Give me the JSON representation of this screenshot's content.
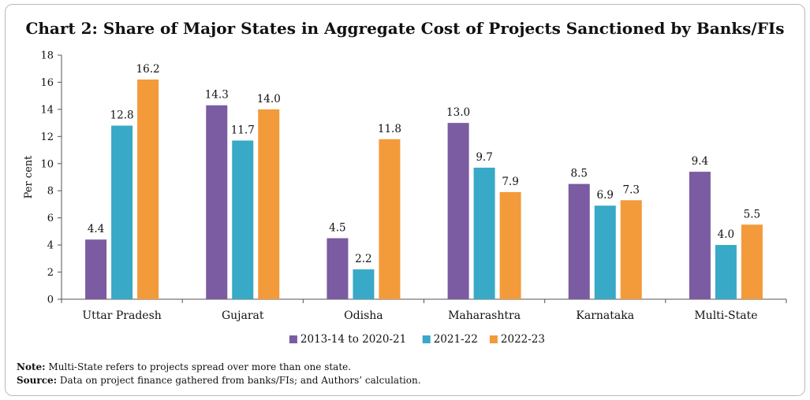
{
  "chart_data": {
    "type": "bar",
    "title": "Chart 2: Share of Major States in Aggregate Cost of Projects Sanctioned by Banks/FIs",
    "ylabel": "Per cent",
    "xlabel": "",
    "ylim": [
      0,
      18
    ],
    "yticks": [
      0,
      2,
      4,
      6,
      8,
      10,
      12,
      14,
      16,
      18
    ],
    "categories": [
      "Uttar Pradesh",
      "Gujarat",
      "Odisha",
      "Maharashtra",
      "Karnataka",
      "Multi-State"
    ],
    "series": [
      {
        "name": "2013-14 to 2020-21",
        "color": "#7b5ba1",
        "values": [
          4.4,
          14.3,
          4.5,
          13.0,
          8.5,
          9.4
        ]
      },
      {
        "name": "2021-22",
        "color": "#38a9c6",
        "values": [
          12.8,
          11.7,
          2.2,
          9.7,
          6.9,
          4.0
        ]
      },
      {
        "name": "2022-23",
        "color": "#f39a3a",
        "values": [
          16.2,
          14.0,
          11.8,
          7.9,
          7.3,
          5.5
        ]
      }
    ],
    "grid": false,
    "legend": "bottom-center",
    "data_labels": true
  },
  "notes": {
    "note_label": "Note:",
    "note_text": " Multi-State refers to projects spread over more than one state.",
    "source_label": "Source:",
    "source_text": " Data on project finance gathered from banks/FIs; and Authors’ calculation."
  }
}
